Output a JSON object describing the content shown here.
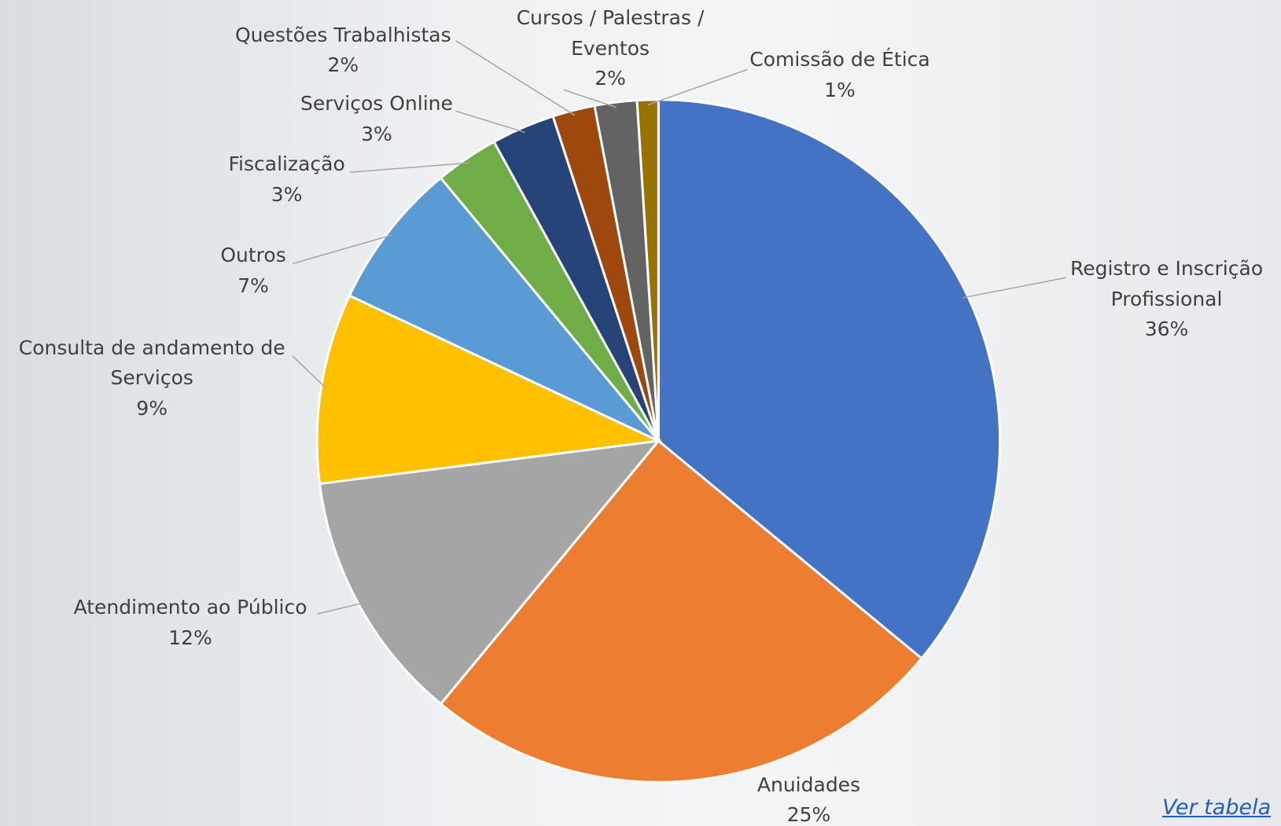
{
  "chart_data": {
    "type": "pie",
    "categories": [
      "Registro e Inscrição Profissional",
      "Anuidades",
      "Atendimento ao Público",
      "Consulta de andamento de Serviços",
      "Outros",
      "Fiscalização",
      "Serviços Online",
      "Questões Trabalhistas",
      "Cursos / Palestras / Eventos",
      "Comissão de Ética"
    ],
    "values": [
      36,
      25,
      12,
      9,
      7,
      3,
      3,
      2,
      2,
      1
    ],
    "value_labels": [
      "36%",
      "25%",
      "12%",
      "9%",
      "7%",
      "3%",
      "3%",
      "2%",
      "2%",
      "1%"
    ],
    "colors": [
      "#4472C4",
      "#ED7D31",
      "#A5A5A5",
      "#FFC000",
      "#5B9BD5",
      "#70AD47",
      "#264478",
      "#9E480E",
      "#636363",
      "#997300"
    ],
    "link": "Ver tabela"
  }
}
